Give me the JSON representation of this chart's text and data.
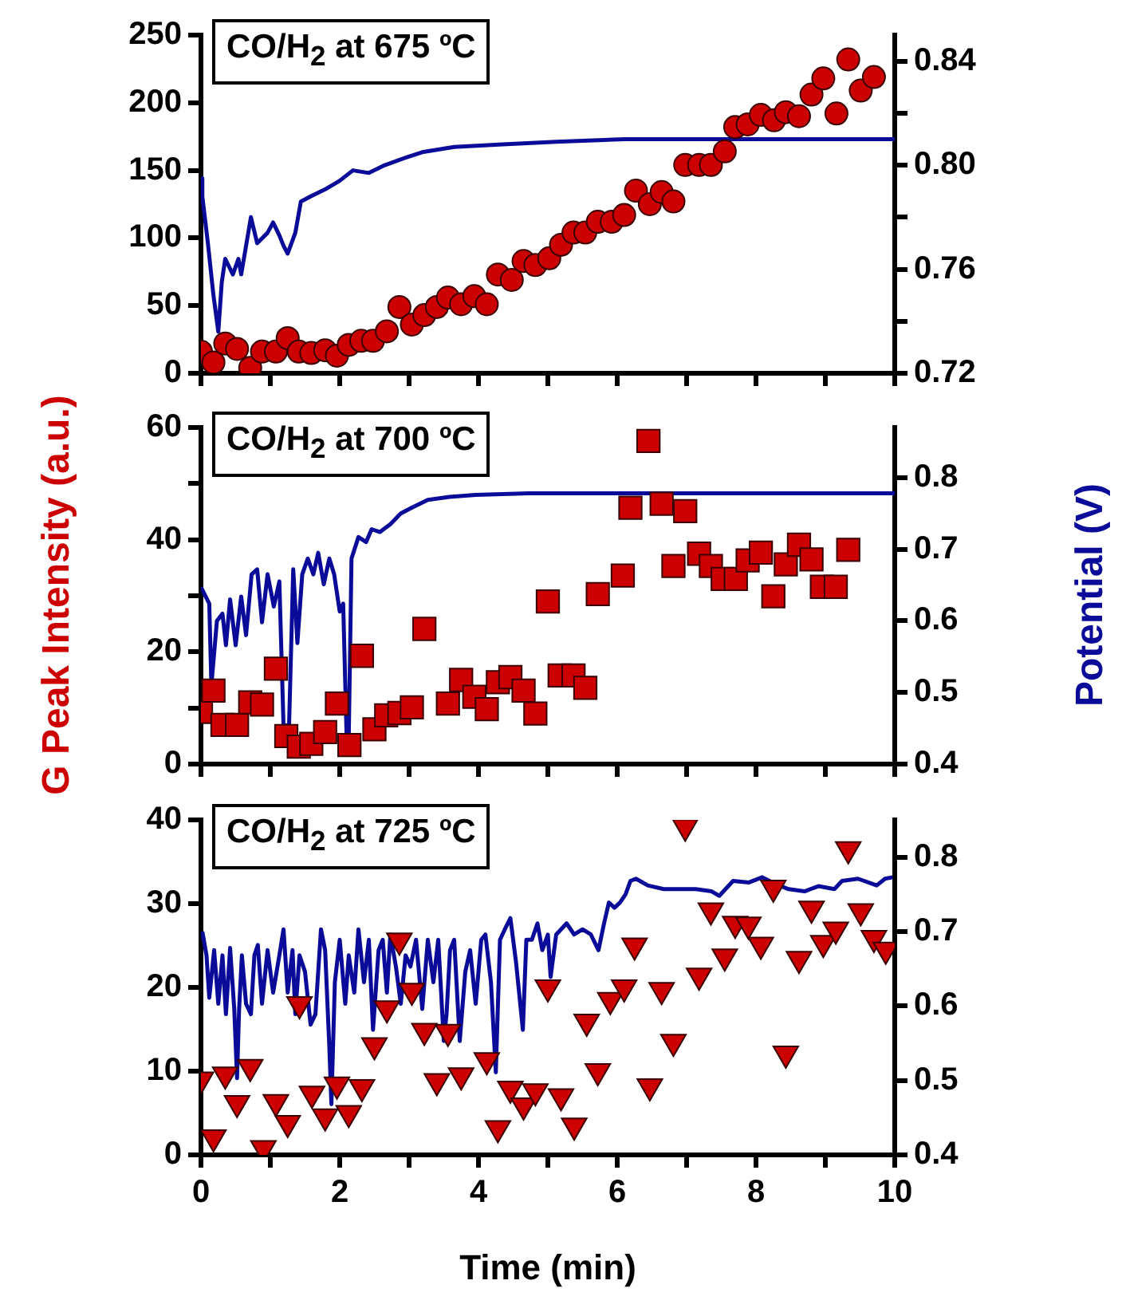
{
  "chart_data": [
    {
      "type": "scatter",
      "title": "CO/H$_{2}$ at 675 ºC",
      "xlim": [
        0,
        10
      ],
      "xticks": [
        0,
        {
          "value": 1,
          "label": null
        },
        2,
        {
          "value": 3,
          "label": null
        },
        4,
        {
          "value": 5,
          "label": null
        },
        6,
        {
          "value": 7,
          "label": null
        },
        8,
        {
          "value": 9,
          "label": null
        },
        10
      ],
      "ylim": [
        0,
        250
      ],
      "yticks": [
        0,
        50,
        100,
        150,
        200,
        250
      ],
      "y2lim": [
        0.72,
        0.85
      ],
      "y2ticks": [
        0.72,
        {
          "value": 0.74,
          "label": null
        },
        0.76,
        {
          "value": 0.78,
          "label": null
        },
        {
          "value": 0.8,
          "label": "0.80"
        },
        {
          "value": 0.82,
          "label": null
        },
        0.84
      ],
      "tick_labels": "y",
      "series": [
        {
          "type": "scatter",
          "marker": "circle",
          "color": "#cc0000",
          "x": [
            0,
            0.18,
            0.35,
            0.52,
            0.71,
            0.88,
            1.08,
            1.25,
            1.41,
            1.59,
            1.79,
            1.96,
            2.13,
            2.31,
            2.48,
            2.68,
            2.86,
            3.04,
            3.22,
            3.4,
            3.56,
            3.75,
            3.94,
            4.12,
            4.28,
            4.48,
            4.65,
            4.82,
            5.02,
            5.19,
            5.37,
            5.54,
            5.72,
            5.92,
            6.1,
            6.27,
            6.47,
            6.64,
            6.81,
            6.98,
            7.18,
            7.35,
            7.55,
            7.7,
            7.88,
            8.07,
            8.26,
            8.43,
            8.62,
            8.8,
            8.97,
            9.16,
            9.33,
            9.51,
            9.7
          ],
          "values": [
            16,
            8,
            22,
            18,
            4,
            16,
            16,
            26,
            16,
            15,
            17,
            13,
            21,
            24,
            24,
            31,
            49,
            36,
            43,
            49,
            56,
            51,
            57,
            51,
            73,
            69,
            83,
            80,
            85,
            95,
            104,
            104,
            112,
            112,
            117,
            135,
            125,
            134,
            127,
            154,
            154,
            154,
            164,
            182,
            184,
            191,
            187,
            193,
            190,
            206,
            218,
            192,
            232,
            209,
            219
          ]
        },
        {
          "type": "line",
          "axis": "y2",
          "color": "#0b0b99",
          "x": [
            0,
            0.02,
            0.1,
            0.18,
            0.25,
            0.3,
            0.35,
            0.46,
            0.54,
            0.58,
            0.72,
            0.81,
            0.96,
            1.04,
            1.13,
            1.19,
            1.25,
            1.36,
            1.44,
            1.58,
            1.81,
            2.0,
            2.19,
            2.42,
            2.65,
            2.96,
            3.19,
            3.65,
            4.35,
            5.12,
            6.12,
            7,
            8,
            9,
            10
          ],
          "values": [
            0.795,
            0.788,
            0.77,
            0.75,
            0.736,
            0.755,
            0.764,
            0.758,
            0.764,
            0.758,
            0.78,
            0.77,
            0.774,
            0.778,
            0.773,
            0.769,
            0.766,
            0.774,
            0.786,
            0.788,
            0.791,
            0.794,
            0.798,
            0.797,
            0.8,
            0.803,
            0.805,
            0.807,
            0.808,
            0.809,
            0.81,
            0.81,
            0.81,
            0.81,
            0.81
          ]
        }
      ]
    },
    {
      "type": "scatter",
      "title": "CO/H$_{2}$ at 700 ºC",
      "ylabel": "G Peak Intensity (a.u.)",
      "y2label": "Potential (V)",
      "xlim": [
        0,
        10
      ],
      "xticks": [
        0,
        {
          "value": 1,
          "label": null
        },
        2,
        {
          "value": 3,
          "label": null
        },
        4,
        {
          "value": 5,
          "label": null
        },
        6,
        {
          "value": 7,
          "label": null
        },
        8,
        {
          "value": 9,
          "label": null
        },
        10
      ],
      "ylim": [
        0,
        60
      ],
      "yticks": [
        0,
        {
          "value": 10,
          "label": null
        },
        20,
        {
          "value": 30,
          "label": null
        },
        40,
        {
          "value": 50,
          "label": null
        },
        60
      ],
      "y2lim": [
        0.4,
        0.87
      ],
      "y2ticks": [
        0.4,
        0.5,
        0.6,
        0.7,
        0.8
      ],
      "tick_labels": "y",
      "series": [
        {
          "type": "scatter",
          "marker": "square",
          "color": "#cc0000",
          "x": [
            0,
            0.18,
            0.31,
            0.52,
            0.71,
            0.88,
            1.08,
            1.23,
            1.41,
            1.59,
            1.79,
            1.96,
            2.14,
            2.32,
            2.5,
            2.67,
            2.86,
            3.04,
            3.22,
            3.56,
            3.75,
            3.94,
            4.12,
            4.28,
            4.46,
            4.65,
            4.82,
            5.0,
            5.17,
            5.37,
            5.54,
            5.72,
            6.08,
            6.19,
            6.45,
            6.64,
            6.81,
            6.98,
            7.18,
            7.35,
            7.52,
            7.71,
            7.88,
            8.07,
            8.25,
            8.43,
            8.62,
            8.8,
            8.95,
            9.15,
            9.33
          ],
          "values": [
            9.3,
            13.1,
            7,
            7,
            11,
            10.6,
            17,
            5,
            3.1,
            3.6,
            5.7,
            10.8,
            3.4,
            19.3,
            6.2,
            8.7,
            9.1,
            10.1,
            24.1,
            10.8,
            15,
            12,
            9.8,
            14.6,
            15.5,
            13.1,
            9,
            29,
            15.8,
            15.8,
            13.6,
            30.3,
            33.6,
            45.7,
            57.6,
            46.4,
            35.3,
            45.1,
            37.5,
            35.3,
            33,
            33,
            36.3,
            37.7,
            29.9,
            35.6,
            39.1,
            36.5,
            31.6,
            31.6,
            38.2
          ]
        },
        {
          "type": "line",
          "axis": "y2",
          "color": "#0b0b99",
          "x": [
            0,
            0.02,
            0.12,
            0.15,
            0.23,
            0.31,
            0.36,
            0.42,
            0.5,
            0.58,
            0.65,
            0.73,
            0.81,
            0.88,
            0.96,
            1.05,
            1.13,
            1.19,
            1.27,
            1.33,
            1.39,
            1.46,
            1.54,
            1.62,
            1.69,
            1.77,
            1.85,
            1.92,
            2.0,
            2.05,
            2.1,
            2.13,
            2.17,
            2.27,
            2.38,
            2.46,
            2.58,
            2.73,
            2.88,
            3.04,
            3.27,
            3.58,
            3.96,
            4.73,
            6,
            7,
            8,
            9,
            10
          ],
          "values": [
            0.647,
            0.647,
            0.624,
            0.51,
            0.6,
            0.61,
            0.566,
            0.63,
            0.566,
            0.634,
            0.58,
            0.665,
            0.672,
            0.598,
            0.665,
            0.62,
            0.655,
            0.454,
            0.454,
            0.672,
            0.569,
            0.665,
            0.687,
            0.665,
            0.695,
            0.651,
            0.687,
            0.665,
            0.613,
            0.624,
            0.436,
            0.436,
            0.687,
            0.717,
            0.71,
            0.728,
            0.724,
            0.735,
            0.75,
            0.758,
            0.769,
            0.773,
            0.776,
            0.778,
            0.778,
            0.778,
            0.778,
            0.778,
            0.778
          ]
        }
      ]
    },
    {
      "type": "scatter",
      "title": "CO/H$_{2}$ at 725 ºC",
      "xlabel": "Time (min)",
      "xlim": [
        0,
        10
      ],
      "xticks": [
        0,
        {
          "value": 1,
          "label": null
        },
        2,
        {
          "value": 3,
          "label": null
        },
        4,
        {
          "value": 5,
          "label": null
        },
        6,
        {
          "value": 7,
          "label": null
        },
        8,
        {
          "value": 9,
          "label": null
        },
        10
      ],
      "ylim": [
        0,
        40
      ],
      "yticks": [
        0,
        10,
        20,
        30,
        40
      ],
      "y2lim": [
        0.4,
        0.85
      ],
      "y2ticks": [
        0.4,
        0.5,
        0.6,
        0.7,
        0.8
      ],
      "series": [
        {
          "type": "scatter",
          "marker": "triangle",
          "color": "#cc0000",
          "x": [
            0,
            0.18,
            0.35,
            0.52,
            0.71,
            0.9,
            1.08,
            1.25,
            1.42,
            1.6,
            1.79,
            1.96,
            2.13,
            2.32,
            2.5,
            2.68,
            2.86,
            3.04,
            3.22,
            3.4,
            3.56,
            3.75,
            4.12,
            4.28,
            4.46,
            4.65,
            4.82,
            5.0,
            5.19,
            5.38,
            5.56,
            5.72,
            5.9,
            6.1,
            6.25,
            6.47,
            6.64,
            6.81,
            6.98,
            7.18,
            7.35,
            7.55,
            7.7,
            7.89,
            8.07,
            8.25,
            8.43,
            8.62,
            8.8,
            8.97,
            9.15,
            9.33,
            9.51,
            9.7,
            9.87
          ],
          "values": [
            9,
            2.1,
            9.6,
            6.2,
            10.5,
            0.8,
            6.3,
            3.8,
            18,
            7.3,
            4.6,
            8.4,
            5,
            8.1,
            13.1,
            17.5,
            25.6,
            19.6,
            14.8,
            8.8,
            14.7,
            9.5,
            11.3,
            3.2,
            7.9,
            5.9,
            7.6,
            20,
            7,
            3.5,
            15.9,
            10,
            18.5,
            20,
            25,
            8.2,
            19.7,
            13.5,
            39.2,
            21.4,
            29.2,
            23.7,
            27.6,
            27.5,
            25.1,
            31.9,
            12.1,
            23.4,
            29.4,
            25.3,
            26.9,
            36.5,
            29.1,
            25.9,
            24.5
          ]
        },
        {
          "type": "line",
          "axis": "y2",
          "color": "#0b0b99",
          "x": [
            0.02,
            0.08,
            0.12,
            0.19,
            0.25,
            0.31,
            0.36,
            0.42,
            0.48,
            0.52,
            0.55,
            0.59,
            0.65,
            0.72,
            0.77,
            0.82,
            0.88,
            0.96,
            1.04,
            1.13,
            1.19,
            1.25,
            1.32,
            1.36,
            1.42,
            1.5,
            1.58,
            1.65,
            1.73,
            1.79,
            1.85,
            1.88,
            1.93,
            2.0,
            2.08,
            2.13,
            2.21,
            2.27,
            2.35,
            2.42,
            2.48,
            2.56,
            2.62,
            2.68,
            2.73,
            2.81,
            2.88,
            2.95,
            3.02,
            3.1,
            3.19,
            3.27,
            3.35,
            3.42,
            3.5,
            3.54,
            3.59,
            3.65,
            3.73,
            3.81,
            3.88,
            3.96,
            4.04,
            4.1,
            4.18,
            4.25,
            4.31,
            4.38,
            4.46,
            4.54,
            4.64,
            4.69,
            4.77,
            4.85,
            4.92,
            5.0,
            5.04,
            5.12,
            5.19,
            5.27,
            5.38,
            5.5,
            5.62,
            5.73,
            5.81,
            5.88,
            5.96,
            6.04,
            6.12,
            6.19,
            6.27,
            6.44,
            6.67,
            6.9,
            7.13,
            7.36,
            7.47,
            7.67,
            7.9,
            8.09,
            8.28,
            8.47,
            8.7,
            8.9,
            9.13,
            9.24,
            9.47,
            9.74,
            9.86,
            9.97
          ],
          "values": [
            0.7,
            0.668,
            0.611,
            0.675,
            0.603,
            0.668,
            0.589,
            0.678,
            0.596,
            0.503,
            0.596,
            0.668,
            0.603,
            0.589,
            0.668,
            0.682,
            0.603,
            0.675,
            0.618,
            0.668,
            0.703,
            0.618,
            0.675,
            0.589,
            0.668,
            0.646,
            0.575,
            0.589,
            0.703,
            0.675,
            0.546,
            0.468,
            0.632,
            0.689,
            0.603,
            0.668,
            0.618,
            0.703,
            0.632,
            0.689,
            0.568,
            0.675,
            0.689,
            0.618,
            0.696,
            0.653,
            0.603,
            0.668,
            0.653,
            0.689,
            0.596,
            0.689,
            0.632,
            0.689,
            0.553,
            0.589,
            0.675,
            0.689,
            0.553,
            0.646,
            0.675,
            0.603,
            0.689,
            0.696,
            0.632,
            0.511,
            0.689,
            0.703,
            0.718,
            0.66,
            0.568,
            0.689,
            0.689,
            0.711,
            0.675,
            0.696,
            0.639,
            0.696,
            0.703,
            0.711,
            0.696,
            0.703,
            0.696,
            0.675,
            0.711,
            0.739,
            0.732,
            0.739,
            0.75,
            0.768,
            0.771,
            0.762,
            0.757,
            0.757,
            0.757,
            0.754,
            0.748,
            0.768,
            0.766,
            0.773,
            0.764,
            0.757,
            0.754,
            0.761,
            0.757,
            0.768,
            0.771,
            0.762,
            0.771,
            0.773
          ]
        }
      ]
    }
  ]
}
